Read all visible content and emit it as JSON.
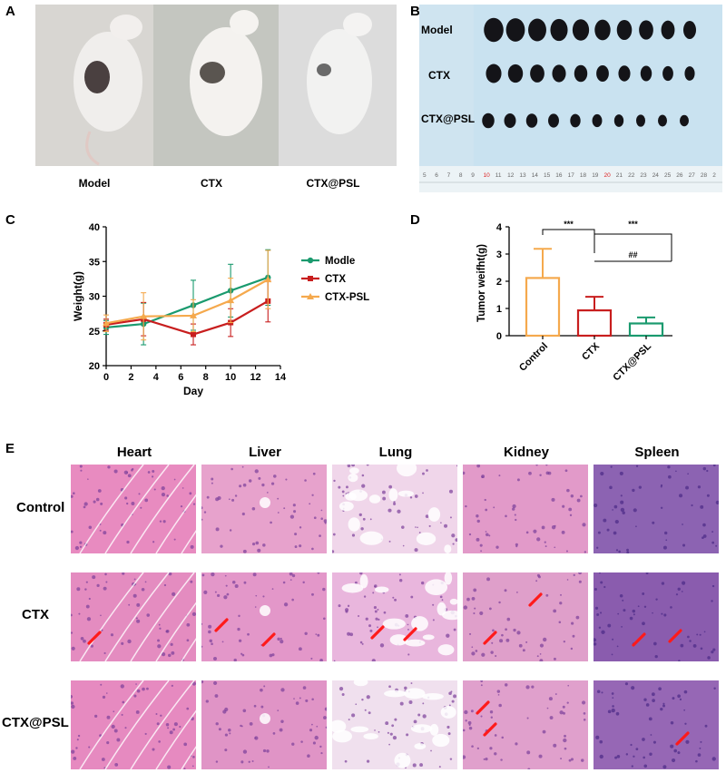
{
  "panel_letters": {
    "a": "A",
    "b": "B",
    "c": "C",
    "d": "D",
    "e": "E"
  },
  "panel_a": {
    "labels": [
      "Model",
      "CTX",
      "CTX@PSL"
    ]
  },
  "panel_b": {
    "row_labels": [
      "Model",
      "CTX",
      "CTX@PSL"
    ],
    "ruler_ticks": [
      "5",
      "6",
      "7",
      "8",
      "9",
      "10",
      "11",
      "12",
      "13",
      "14",
      "15",
      "16",
      "17",
      "18",
      "19",
      "20",
      "21",
      "22",
      "23",
      "24",
      "25",
      "26",
      "27",
      "28",
      "2"
    ],
    "tumor_counts": [
      10,
      10,
      10
    ]
  },
  "chart_data": [
    {
      "type": "line",
      "panel": "C",
      "xlabel": "Day",
      "ylabel": "Weight(g)",
      "xlim": [
        0,
        14
      ],
      "ylim": [
        20,
        40
      ],
      "xticks": [
        "0",
        "2",
        "4",
        "6",
        "8",
        "10",
        "12",
        "14"
      ],
      "yticks": [
        "20",
        "25",
        "30",
        "35",
        "40"
      ],
      "legend_position": "right",
      "grid": false,
      "series": [
        {
          "name": "Modle",
          "color": "#1a9a6e",
          "x": [
            0,
            3,
            7,
            10,
            13
          ],
          "y": [
            25.5,
            26.0,
            28.7,
            30.8,
            32.7
          ],
          "err": [
            1.0,
            3.0,
            3.6,
            3.8,
            4.0
          ]
        },
        {
          "name": "CTX",
          "color": "#c81e1e",
          "x": [
            0,
            3,
            7,
            10,
            13
          ],
          "y": [
            25.9,
            26.7,
            24.5,
            26.2,
            29.3
          ],
          "err": [
            0.8,
            2.4,
            1.5,
            2.0,
            3.0
          ]
        },
        {
          "name": "CTX-PSL",
          "color": "#f5a94d",
          "x": [
            0,
            3,
            7,
            10,
            13
          ],
          "y": [
            26.1,
            27.1,
            27.2,
            29.4,
            32.4
          ],
          "err": [
            1.2,
            3.4,
            2.3,
            3.2,
            4.2
          ]
        }
      ]
    },
    {
      "type": "bar",
      "panel": "D",
      "ylabel": "Tumor weifht(g)",
      "ylim": [
        0,
        4
      ],
      "yticks": [
        "0",
        "1",
        "2",
        "3",
        "4"
      ],
      "categories": [
        "Control",
        "CTX",
        "CTX@PSL"
      ],
      "values": [
        2.12,
        0.93,
        0.45
      ],
      "errors": [
        1.07,
        0.5,
        0.22
      ],
      "colors": [
        "#f5a94d",
        "#c81e1e",
        "#1a9a6e"
      ],
      "significance": [
        {
          "from": "Control",
          "to": "CTX",
          "label": "***"
        },
        {
          "from": "CTX",
          "to": "CTX@PSL",
          "label": "***"
        },
        {
          "from": "CTX",
          "to": "CTX@PSL",
          "label": "##"
        }
      ]
    }
  ],
  "panel_e": {
    "columns": [
      "Heart",
      "Liver",
      "Lung",
      "Kidney",
      "Spleen"
    ],
    "rows": [
      "Control",
      "CTX",
      "CTX@PSL"
    ],
    "arrow_color": "#ff1a1a"
  }
}
